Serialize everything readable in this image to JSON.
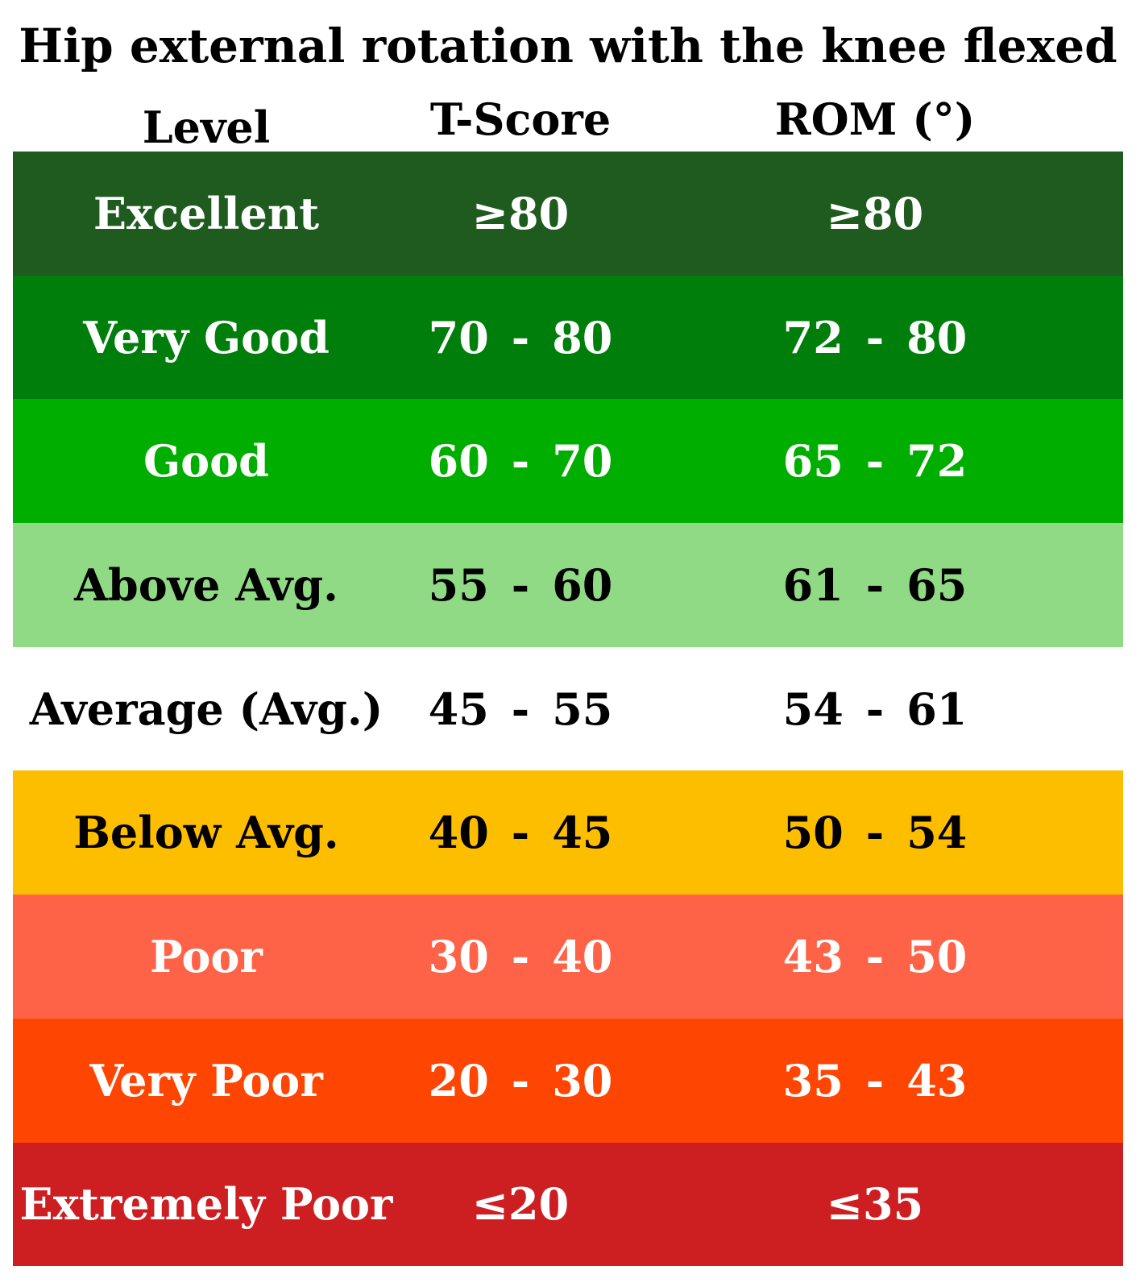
{
  "chart_data": {
    "type": "table",
    "title": "Hip external rotation with the knee flexed",
    "columns": [
      "Level",
      "T-Score",
      "ROM (°)"
    ],
    "rows": [
      {
        "level": "Excellent",
        "tscore": {
          "text": "≥80"
        },
        "rom": {
          "text": "≥80"
        },
        "bg": "#1F5A1F",
        "fg": "#FFFFFF"
      },
      {
        "level": "Very Good",
        "tscore": {
          "lo": "70",
          "dash": "-",
          "hi": "80"
        },
        "rom": {
          "lo": "72",
          "dash": "-",
          "hi": "80"
        },
        "bg": "#007E0C",
        "fg": "#FFFFFF"
      },
      {
        "level": "Good",
        "tscore": {
          "lo": "60",
          "dash": "-",
          "hi": "70"
        },
        "rom": {
          "lo": "65",
          "dash": "-",
          "hi": "72"
        },
        "bg": "#00AE00",
        "fg": "#FFFFFF"
      },
      {
        "level": "Above Avg.",
        "tscore": {
          "lo": "55",
          "dash": "-",
          "hi": "60"
        },
        "rom": {
          "lo": "61",
          "dash": "-",
          "hi": "65"
        },
        "bg": "#90DA85",
        "fg": "#000000"
      },
      {
        "level": "Average (Avg.)",
        "tscore": {
          "lo": "45",
          "dash": "-",
          "hi": "55"
        },
        "rom": {
          "lo": "54",
          "dash": "-",
          "hi": "61"
        },
        "bg": "#FFFFFF",
        "fg": "#000000"
      },
      {
        "level": "Below Avg.",
        "tscore": {
          "lo": "40",
          "dash": "-",
          "hi": "45"
        },
        "rom": {
          "lo": "50",
          "dash": "-",
          "hi": "54"
        },
        "bg": "#FEBE00",
        "fg": "#000000"
      },
      {
        "level": "Poor",
        "tscore": {
          "lo": "30",
          "dash": "-",
          "hi": "40"
        },
        "rom": {
          "lo": "43",
          "dash": "-",
          "hi": "50"
        },
        "bg": "#FF6347",
        "fg": "#FFFFFF"
      },
      {
        "level": "Very Poor",
        "tscore": {
          "lo": "20",
          "dash": "-",
          "hi": "30"
        },
        "rom": {
          "lo": "35",
          "dash": "-",
          "hi": "43"
        },
        "bg": "#FE4501",
        "fg": "#FFFFFF"
      },
      {
        "level": "Extremely Poor",
        "tscore": {
          "text": "≤20"
        },
        "rom": {
          "text": "≤35"
        },
        "bg": "#CD1F21",
        "fg": "#FFFFFF"
      }
    ]
  }
}
